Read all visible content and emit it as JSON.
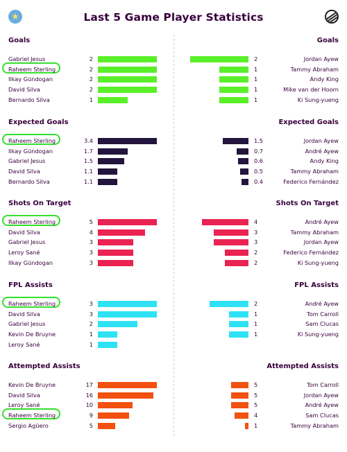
{
  "title": "Last 5 Game Player Statistics",
  "header": {
    "left_crest_icon": "man-city-crest-icon",
    "right_crest_icon": "newcastle-crest-icon"
  },
  "colors": {
    "Goals": "#5af029",
    "Expected Goals": "#23153d",
    "Shots On Target": "#ea2352",
    "FPL Assists": "#2ee2f4",
    "Attempted Assists": "#f2510f",
    "highlight": "#33e02d"
  },
  "sections": [
    {
      "title": "Goals",
      "max": 2,
      "left": [
        {
          "name": "Gabriel Jesus",
          "value": "2",
          "v": 2
        },
        {
          "name": "Raheem Sterling",
          "value": "2",
          "v": 2,
          "highlight": true
        },
        {
          "name": "Ilkay Gündogan",
          "value": "2",
          "v": 2
        },
        {
          "name": "David Silva",
          "value": "2",
          "v": 2
        },
        {
          "name": "Bernardo Silva",
          "value": "1",
          "v": 1
        }
      ],
      "right": [
        {
          "name": "Jordan Ayew",
          "value": "2",
          "v": 2
        },
        {
          "name": "Tammy Abraham",
          "value": "1",
          "v": 1
        },
        {
          "name": "Andy King",
          "value": "1",
          "v": 1
        },
        {
          "name": "Mike van der Hoorn",
          "value": "1",
          "v": 1
        },
        {
          "name": "Ki Sung-yueng",
          "value": "1",
          "v": 1
        }
      ]
    },
    {
      "title": "Expected Goals",
      "max": 3.4,
      "left": [
        {
          "name": "Raheem Sterling",
          "value": "3.4",
          "v": 3.4,
          "highlight": true
        },
        {
          "name": "Ilkay Gündogan",
          "value": "1.7",
          "v": 1.7
        },
        {
          "name": "Gabriel Jesus",
          "value": "1.5",
          "v": 1.5
        },
        {
          "name": "David Silva",
          "value": "1.1",
          "v": 1.1
        },
        {
          "name": "Bernardo Silva",
          "value": "1.1",
          "v": 1.1
        }
      ],
      "right": [
        {
          "name": "Jordan Ayew",
          "value": "1.5",
          "v": 1.5
        },
        {
          "name": "André Ayew",
          "value": "0.7",
          "v": 0.7
        },
        {
          "name": "Andy King",
          "value": "0.6",
          "v": 0.6
        },
        {
          "name": "Tammy Abraham",
          "value": "0.5",
          "v": 0.5
        },
        {
          "name": "Federico Fernández",
          "value": "0.4",
          "v": 0.4
        }
      ]
    },
    {
      "title": "Shots On Target",
      "max": 5,
      "left": [
        {
          "name": "Raheem Sterling",
          "value": "5",
          "v": 5,
          "highlight": true
        },
        {
          "name": "David Silva",
          "value": "4",
          "v": 4
        },
        {
          "name": "Gabriel Jesus",
          "value": "3",
          "v": 3
        },
        {
          "name": "Leroy Sané",
          "value": "3",
          "v": 3
        },
        {
          "name": "Ilkay Gündogan",
          "value": "3",
          "v": 3
        }
      ],
      "right": [
        {
          "name": "André Ayew",
          "value": "4",
          "v": 4
        },
        {
          "name": "Tammy Abraham",
          "value": "3",
          "v": 3
        },
        {
          "name": "Jordan Ayew",
          "value": "3",
          "v": 3
        },
        {
          "name": "Federico Fernández",
          "value": "2",
          "v": 2
        },
        {
          "name": "Ki Sung-yueng",
          "value": "2",
          "v": 2
        }
      ]
    },
    {
      "title": "FPL Assists",
      "max": 3,
      "left": [
        {
          "name": "Raheem Sterling",
          "value": "3",
          "v": 3,
          "highlight": true
        },
        {
          "name": "David Silva",
          "value": "3",
          "v": 3
        },
        {
          "name": "Gabriel Jesus",
          "value": "2",
          "v": 2
        },
        {
          "name": "Kevin De Bruyne",
          "value": "1",
          "v": 1
        },
        {
          "name": "Leroy Sané",
          "value": "1",
          "v": 1
        }
      ],
      "right": [
        {
          "name": "André Ayew",
          "value": "2",
          "v": 2
        },
        {
          "name": "Tom Carroll",
          "value": "1",
          "v": 1
        },
        {
          "name": "Sam Clucas",
          "value": "1",
          "v": 1
        },
        {
          "name": "Ki Sung-yueng",
          "value": "1",
          "v": 1
        }
      ]
    },
    {
      "title": "Attempted Assists",
      "max": 17,
      "left": [
        {
          "name": "Kevin De Bruyne",
          "value": "17",
          "v": 17
        },
        {
          "name": "David Silva",
          "value": "16",
          "v": 16
        },
        {
          "name": "Leroy Sané",
          "value": "10",
          "v": 10
        },
        {
          "name": "Raheem Sterling",
          "value": "9",
          "v": 9,
          "highlight": true
        },
        {
          "name": "Sergio Agüero",
          "value": "5",
          "v": 5
        }
      ],
      "right": [
        {
          "name": "Tom Carroll",
          "value": "5",
          "v": 5
        },
        {
          "name": "Jordan Ayew",
          "value": "5",
          "v": 5
        },
        {
          "name": "André Ayew",
          "value": "5",
          "v": 5
        },
        {
          "name": "Sam Clucas",
          "value": "4",
          "v": 4
        },
        {
          "name": "Tammy Abraham",
          "value": "1",
          "v": 1
        }
      ]
    }
  ]
}
